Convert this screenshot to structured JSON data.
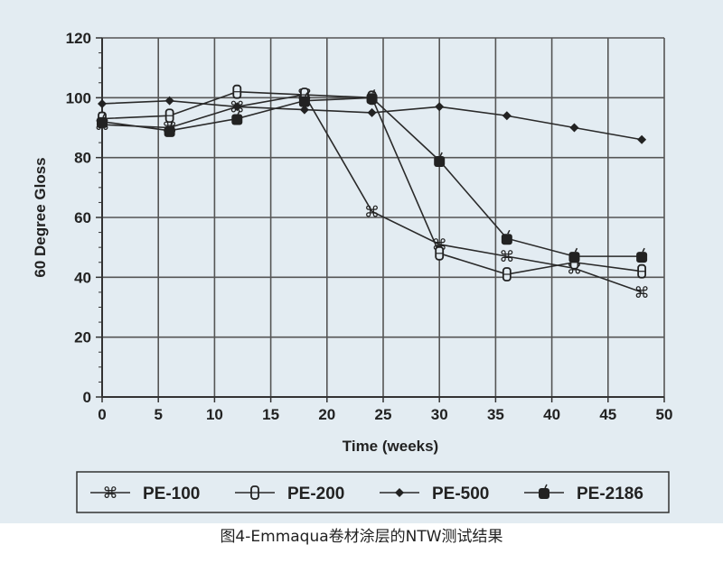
{
  "chart_data": {
    "type": "line",
    "title": "",
    "xlabel": "Time (weeks)",
    "ylabel": "60 Degree Gloss",
    "xlim": [
      0,
      50
    ],
    "ylim": [
      0,
      120
    ],
    "xticks": [
      0,
      5,
      10,
      15,
      20,
      25,
      30,
      35,
      40,
      45,
      50
    ],
    "yticks": [
      0,
      20,
      40,
      60,
      80,
      100,
      120
    ],
    "grid": true,
    "legend_placement": "bottom",
    "x": [
      0,
      6,
      12,
      18,
      24,
      30,
      36,
      42,
      48
    ],
    "series": [
      {
        "name": "PE-100",
        "marker": "command-symbol",
        "values": [
          91,
          90,
          97,
          101,
          62,
          51,
          47,
          43,
          35
        ]
      },
      {
        "name": "PE-200",
        "marker": "hollow-rounded-rect",
        "values": [
          93,
          94,
          102,
          101,
          100,
          48,
          41,
          45,
          42
        ]
      },
      {
        "name": "PE-500",
        "marker": "diamond",
        "values": [
          98,
          99,
          97,
          96,
          95,
          97,
          94,
          90,
          86
        ]
      },
      {
        "name": "PE-2186",
        "marker": "filled-apple-square",
        "values": [
          92,
          89,
          93,
          99,
          100,
          79,
          53,
          47,
          47
        ]
      }
    ],
    "colors": {
      "plot_background": "#e3ecf2",
      "line": "#2a2a2a",
      "grid": "#555555"
    }
  },
  "caption": "图4-Emmaqua卷材涂层的NTW测试结果"
}
